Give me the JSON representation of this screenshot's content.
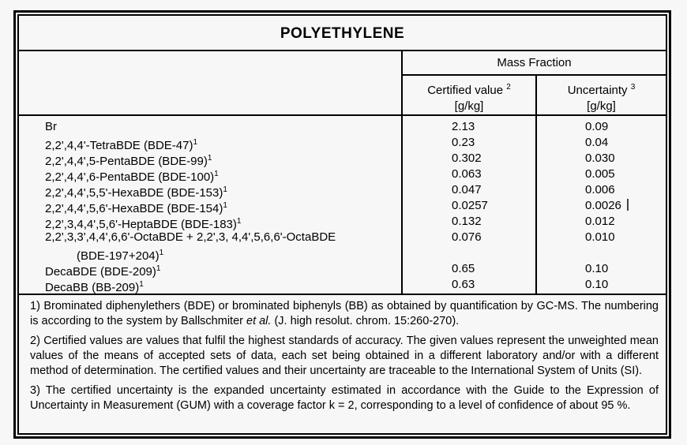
{
  "page": {
    "background": "#f7f7f7",
    "border_color": "#000000"
  },
  "title": "POLYETHYLENE",
  "table": {
    "group_header": "Mass Fraction",
    "columns": [
      {
        "label": "Certified value",
        "sup": "2",
        "unit": "[g/kg]"
      },
      {
        "label": "Uncertainty",
        "sup": "3",
        "unit": "[g/kg]"
      }
    ],
    "rows": [
      {
        "name": "Br",
        "sup": "",
        "certified": "2.13",
        "uncertainty": "0.09",
        "cursor": false
      },
      {
        "name": "2,2',4,4'-TetraBDE (BDE-47)",
        "sup": "1",
        "certified": "0.23",
        "uncertainty": "0.04",
        "cursor": false
      },
      {
        "name": "2,2',4,4',5-PentaBDE (BDE-99)",
        "sup": "1",
        "certified": "0.302",
        "uncertainty": "0.030",
        "cursor": false
      },
      {
        "name": "2,2',4,4',6-PentaBDE (BDE-100)",
        "sup": "1",
        "certified": "0.063",
        "uncertainty": "0.005",
        "cursor": false
      },
      {
        "name": "2,2',4,4',5,5'-HexaBDE (BDE-153)",
        "sup": "1",
        "certified": "0.047",
        "uncertainty": "0.006",
        "cursor": false
      },
      {
        "name": "2,2',4,4',5,6'-HexaBDE (BDE-154)",
        "sup": "1",
        "certified": "0.0257",
        "uncertainty": "0.0026",
        "cursor": true
      },
      {
        "name": "2,2',3,4,4',5,6'-HeptaBDE (BDE-183)",
        "sup": "1",
        "certified": "0.132",
        "uncertainty": "0.012",
        "cursor": false
      },
      {
        "name": "2,2',3,3',4,4',6,6'-OctaBDE + 2,2',3, 4,4',5,6,6'-OctaBDE",
        "sup": "",
        "extra": "(BDE-197+204)",
        "extra_sup": "1",
        "certified": "0.076",
        "uncertainty": "0.010",
        "cursor": false
      },
      {
        "name": "DecaBDE (BDE-209)",
        "sup": "1",
        "certified": "0.65",
        "uncertainty": "0.10",
        "cursor": false
      },
      {
        "name": "DecaBB (BB-209)",
        "sup": "1",
        "certified": "0.63",
        "uncertainty": "0.10",
        "cursor": false
      }
    ]
  },
  "footnotes": [
    {
      "segments": [
        {
          "t": "1) Brominated diphenylethers (BDE) or brominated biphenyls (BB) as obtained by quantification by GC-MS. The numbering is according to the system by Ballschmiter ",
          "i": false
        },
        {
          "t": "et al.",
          "i": true
        },
        {
          "t": " (J. high resolut. chrom. 15:260-270).",
          "i": false
        }
      ]
    },
    {
      "segments": [
        {
          "t": "2) Certified values are values that fulfil the highest standards of accuracy. The given values represent the unweighted mean values of the means of accepted sets of data, each set being obtained in a different laboratory and/or with a different method of determination. The certified values and their uncertainty are traceable to the International System of Units (SI).",
          "i": false
        }
      ]
    },
    {
      "segments": [
        {
          "t": "3) The certified uncertainty is the expanded uncertainty estimated in accordance with the Guide to the Expression of Uncertainty in Measurement (GUM) with a coverage factor k = 2, corresponding to a level of confidence of about 95 %.",
          "i": false
        }
      ]
    }
  ]
}
